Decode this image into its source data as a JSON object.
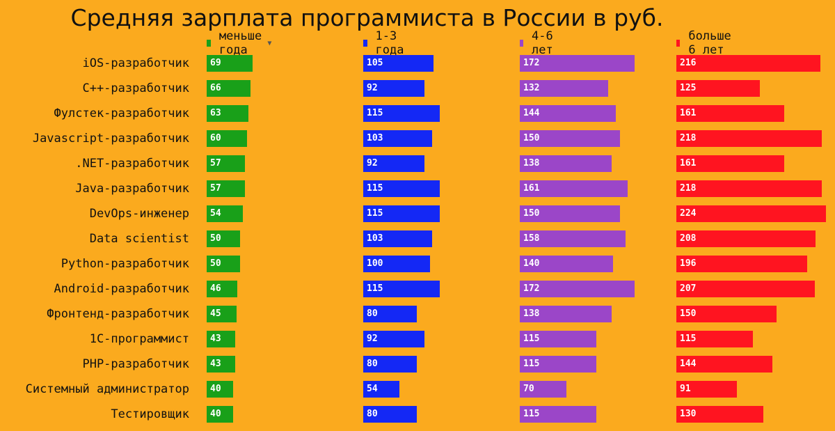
{
  "chart_data": {
    "type": "bar",
    "title": "Средняя зарплата программиста в России в руб.",
    "legend_position": "top",
    "categories": [
      "iOS-разработчик",
      "C++-разработчик",
      "Фулстек-разработчик",
      "Javascript-разработчик",
      ".NET-разработчик",
      "Java-разработчик",
      "DevOps-инженер",
      "Data scientist",
      "Python-разработчик",
      "Android-разработчик",
      "Фронтенд-разработчик",
      "1С-программист",
      "PHP-разработчик",
      "Системный администратор",
      "Тестировщик"
    ],
    "series": [
      {
        "name": "меньше года",
        "color": "#19a019",
        "values": [
          69,
          66,
          63,
          60,
          57,
          57,
          54,
          50,
          50,
          46,
          45,
          43,
          43,
          40,
          40
        ]
      },
      {
        "name": "1-3 года",
        "color": "#1428f5",
        "values": [
          105,
          92,
          115,
          103,
          92,
          115,
          115,
          103,
          100,
          115,
          80,
          92,
          80,
          54,
          80
        ]
      },
      {
        "name": "4-6 лет",
        "color": "#9b46c8",
        "values": [
          172,
          132,
          144,
          150,
          138,
          161,
          150,
          158,
          140,
          172,
          138,
          115,
          115,
          70,
          115
        ]
      },
      {
        "name": "больше 6 лет",
        "color": "#ff1420",
        "values": [
          216,
          125,
          161,
          218,
          161,
          218,
          224,
          208,
          196,
          207,
          150,
          115,
          144,
          91,
          130
        ]
      }
    ],
    "sort_icon": "sort-desc-icon"
  }
}
